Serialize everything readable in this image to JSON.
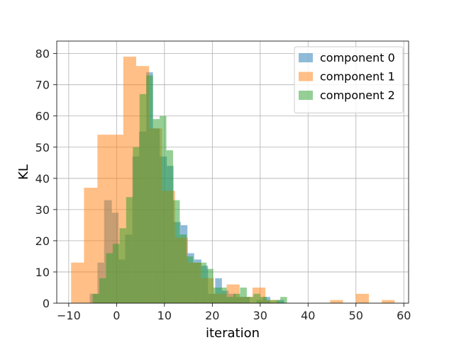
{
  "chart_data": {
    "type": "bar",
    "xlabel": "iteration",
    "ylabel": "KL",
    "xlim": [
      -12.5,
      61.0
    ],
    "ylim": [
      0,
      84
    ],
    "xticks": [
      -10,
      0,
      10,
      20,
      30,
      40,
      50,
      60
    ],
    "yticks": [
      0,
      10,
      20,
      30,
      40,
      50,
      60,
      70,
      80
    ],
    "grid": true,
    "legend_position": "top-right",
    "series": [
      {
        "name": "component 0",
        "color": "#1f77b4",
        "opacity": 0.5,
        "bins": [
          [
            -5.6,
            -4.0,
            3
          ],
          [
            -4.0,
            -2.6,
            13
          ],
          [
            -2.6,
            -1.0,
            33
          ],
          [
            -1.0,
            0.4,
            29
          ],
          [
            0.4,
            1.8,
            14
          ],
          [
            1.8,
            3.3,
            22
          ],
          [
            3.3,
            4.7,
            47
          ],
          [
            4.7,
            6.2,
            55
          ],
          [
            6.2,
            7.6,
            74
          ],
          [
            7.6,
            9.0,
            56
          ],
          [
            9.0,
            10.5,
            47
          ],
          [
            10.5,
            11.9,
            44
          ],
          [
            11.9,
            13.4,
            26
          ],
          [
            13.4,
            14.8,
            25
          ],
          [
            14.8,
            16.2,
            16
          ],
          [
            16.2,
            17.7,
            14
          ],
          [
            17.7,
            19.1,
            12
          ],
          [
            19.1,
            20.6,
            3
          ],
          [
            20.6,
            22.0,
            8
          ],
          [
            22.0,
            23.4,
            4
          ],
          [
            23.4,
            24.9,
            3
          ],
          [
            24.9,
            26.3,
            2
          ],
          [
            26.3,
            27.8,
            2
          ],
          [
            27.8,
            29.2,
            0
          ],
          [
            29.2,
            30.6,
            1
          ],
          [
            30.6,
            32.1,
            2
          ],
          [
            32.1,
            33.5,
            0
          ],
          [
            33.5,
            35.0,
            1
          ]
        ]
      },
      {
        "name": "component 1",
        "color": "#ff7f0e",
        "opacity": 0.5,
        "bins": [
          [
            -9.5,
            -6.8,
            13
          ],
          [
            -6.8,
            -4.0,
            37
          ],
          [
            -4.0,
            -1.3,
            54
          ],
          [
            -1.3,
            1.4,
            54
          ],
          [
            1.4,
            4.1,
            79
          ],
          [
            4.1,
            6.8,
            76
          ],
          [
            6.8,
            9.5,
            56
          ],
          [
            9.5,
            12.2,
            36
          ],
          [
            12.2,
            14.9,
            21
          ],
          [
            14.9,
            17.6,
            13
          ],
          [
            17.6,
            20.3,
            8
          ],
          [
            20.3,
            23.0,
            3
          ],
          [
            23.0,
            25.7,
            6
          ],
          [
            25.7,
            28.4,
            2
          ],
          [
            28.4,
            31.1,
            5
          ],
          [
            31.1,
            33.8,
            1
          ],
          [
            33.8,
            36.5,
            0
          ],
          [
            36.5,
            39.2,
            0
          ],
          [
            39.2,
            41.9,
            0
          ],
          [
            41.9,
            44.6,
            0
          ],
          [
            44.6,
            47.3,
            1
          ],
          [
            47.3,
            50.0,
            0
          ],
          [
            50.0,
            52.7,
            3
          ],
          [
            52.7,
            55.4,
            0
          ],
          [
            55.4,
            58.1,
            1
          ]
        ]
      },
      {
        "name": "component 2",
        "color": "#2ca02c",
        "opacity": 0.5,
        "bins": [
          [
            -5.0,
            -3.6,
            3
          ],
          [
            -3.6,
            -2.2,
            8
          ],
          [
            -2.2,
            -0.8,
            16
          ],
          [
            -0.8,
            0.6,
            19
          ],
          [
            0.6,
            2.0,
            24
          ],
          [
            2.0,
            3.4,
            34
          ],
          [
            3.4,
            4.8,
            50
          ],
          [
            4.8,
            6.2,
            67
          ],
          [
            6.2,
            7.6,
            73
          ],
          [
            7.6,
            9.0,
            59
          ],
          [
            9.0,
            10.4,
            60
          ],
          [
            10.4,
            11.8,
            49
          ],
          [
            11.8,
            13.2,
            33
          ],
          [
            13.2,
            14.6,
            22
          ],
          [
            14.6,
            16.0,
            15
          ],
          [
            16.0,
            17.4,
            13
          ],
          [
            17.4,
            18.8,
            13
          ],
          [
            18.8,
            20.2,
            11
          ],
          [
            20.2,
            21.6,
            5
          ],
          [
            21.6,
            23.0,
            5
          ],
          [
            23.0,
            24.4,
            2
          ],
          [
            24.4,
            25.8,
            3
          ],
          [
            25.8,
            27.2,
            5
          ],
          [
            27.2,
            28.6,
            2
          ],
          [
            28.6,
            30.0,
            3
          ],
          [
            30.0,
            31.4,
            2
          ],
          [
            31.4,
            32.8,
            1
          ],
          [
            32.8,
            34.2,
            1
          ],
          [
            34.2,
            35.6,
            2
          ]
        ]
      }
    ]
  }
}
